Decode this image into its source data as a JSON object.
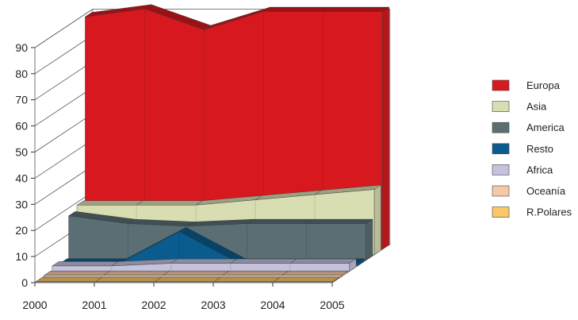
{
  "chart_data": {
    "type": "area",
    "x": [
      "2000",
      "2001",
      "2002",
      "2003",
      "2004",
      "2005"
    ],
    "y_ticks": [
      "0",
      "10",
      "20",
      "30",
      "40",
      "50",
      "60",
      "70",
      "80",
      "90"
    ],
    "ylim": [
      0,
      90
    ],
    "grid": false,
    "legend_position": "right",
    "series": [
      {
        "name": "Europa",
        "color": "#d7191f",
        "values": [
          89,
          92,
          84,
          91,
          91,
          91
        ]
      },
      {
        "name": "Asia",
        "color": "#d9deb2",
        "values": [
          19,
          19,
          19,
          21,
          23,
          25
        ]
      },
      {
        "name": "America",
        "color": "#5a6e74",
        "values": [
          17,
          14,
          13,
          14,
          14,
          14
        ]
      },
      {
        "name": "Resto",
        "color": "#0a5c8f",
        "values": [
          1,
          1,
          13,
          1,
          1,
          1
        ]
      },
      {
        "name": "Africa",
        "color": "#c4c2dc",
        "values": [
          2,
          2,
          3,
          3,
          3,
          3
        ]
      },
      {
        "name": "Oceanía",
        "color": "#f6c9a6",
        "values": [
          0.5,
          0.5,
          0.5,
          0.5,
          0.5,
          0.5
        ]
      },
      {
        "name": "R.Polares",
        "color": "#f9c868",
        "values": [
          0.2,
          0.2,
          0.2,
          0.2,
          0.2,
          0.2
        ]
      }
    ]
  }
}
